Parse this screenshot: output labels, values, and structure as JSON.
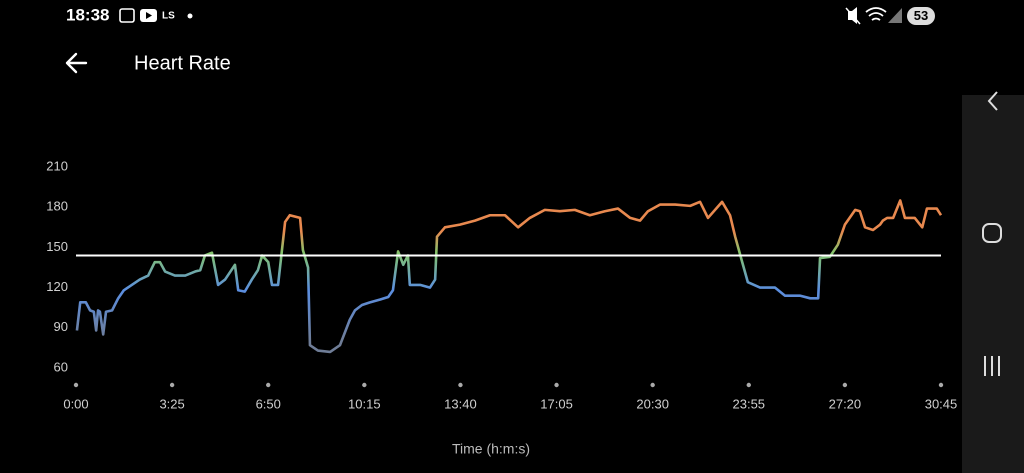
{
  "status_bar": {
    "time": "18:38",
    "app_label": "LS",
    "battery": "53"
  },
  "header": {
    "title": "Heart Rate"
  },
  "chart_data": {
    "type": "line",
    "x_label": "Time (h:m:s)",
    "xlim": [
      0,
      1845
    ],
    "xticks": [
      {
        "value": 0,
        "label": "0:00"
      },
      {
        "value": 205,
        "label": "3:25"
      },
      {
        "value": 410,
        "label": "6:50"
      },
      {
        "value": 615,
        "label": "10:15"
      },
      {
        "value": 820,
        "label": "13:40"
      },
      {
        "value": 1025,
        "label": "17:05"
      },
      {
        "value": 1230,
        "label": "20:30"
      },
      {
        "value": 1435,
        "label": "23:55"
      },
      {
        "value": 1640,
        "label": "27:20"
      },
      {
        "value": 1845,
        "label": "30:45"
      }
    ],
    "ylim": [
      60,
      210
    ],
    "yticks": [
      60,
      90,
      120,
      150,
      180,
      210
    ],
    "grid": false,
    "threshold": 144,
    "threshold_color": "#ffffff",
    "gradient": [
      {
        "value": 80,
        "color": "#6f7d97"
      },
      {
        "value": 118,
        "color": "#5b8ee0"
      },
      {
        "value": 146,
        "color": "#84c46c"
      },
      {
        "value": 162,
        "color": "#e8894f"
      }
    ],
    "x": [
      2,
      9,
      21,
      30,
      38,
      43,
      47,
      51,
      58,
      64,
      77,
      90,
      102,
      119,
      136,
      154,
      168,
      179,
      190,
      211,
      233,
      254,
      265,
      275,
      290,
      296,
      303,
      318,
      339,
      346,
      360,
      375,
      388,
      397,
      410,
      418,
      431,
      446,
      456,
      478,
      484,
      495,
      499,
      516,
      542,
      563,
      584,
      595,
      610,
      627,
      648,
      666,
      676,
      687,
      698,
      708,
      712,
      734,
      755,
      766,
      770,
      787,
      819,
      851,
      883,
      915,
      943,
      968,
      1000,
      1032,
      1064,
      1096,
      1128,
      1156,
      1182,
      1203,
      1220,
      1246,
      1278,
      1310,
      1331,
      1348,
      1378,
      1395,
      1406,
      1421,
      1433,
      1459,
      1491,
      1512,
      1544,
      1566,
      1583,
      1587,
      1608,
      1625,
      1640,
      1662,
      1672,
      1683,
      1700,
      1715,
      1721,
      1730,
      1743,
      1758,
      1768,
      1789,
      1805,
      1815,
      1836,
      1845
    ],
    "values": [
      88,
      109,
      109,
      103,
      102,
      88,
      103,
      102,
      85,
      102,
      103,
      112,
      118,
      122,
      126,
      129,
      139,
      139,
      132,
      129,
      129,
      132,
      133,
      144,
      146,
      135,
      122,
      126,
      137,
      118,
      117,
      126,
      133,
      144,
      139,
      122,
      122,
      169,
      174,
      172,
      148,
      135,
      77,
      73,
      72,
      77,
      96,
      103,
      107,
      109,
      111,
      113,
      118,
      147,
      137,
      144,
      122,
      122,
      120,
      126,
      158,
      165,
      167,
      170,
      174,
      174,
      165,
      172,
      178,
      177,
      178,
      174,
      177,
      179,
      172,
      170,
      177,
      182,
      182,
      181,
      184,
      172,
      184,
      174,
      158,
      139,
      124,
      120,
      120,
      114,
      114,
      112,
      112,
      142,
      143,
      152,
      167,
      178,
      177,
      165,
      163,
      167,
      170,
      172,
      172,
      185,
      172,
      172,
      165,
      179,
      179,
      174
    ]
  }
}
